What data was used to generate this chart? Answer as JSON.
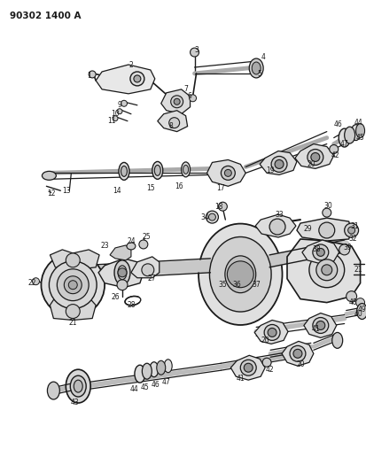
{
  "title": "90302 1400 A",
  "bg_color": "#ffffff",
  "lc": "#1a1a1a",
  "tc": "#1a1a1a",
  "figsize": [
    4.14,
    5.33
  ],
  "dpi": 100
}
